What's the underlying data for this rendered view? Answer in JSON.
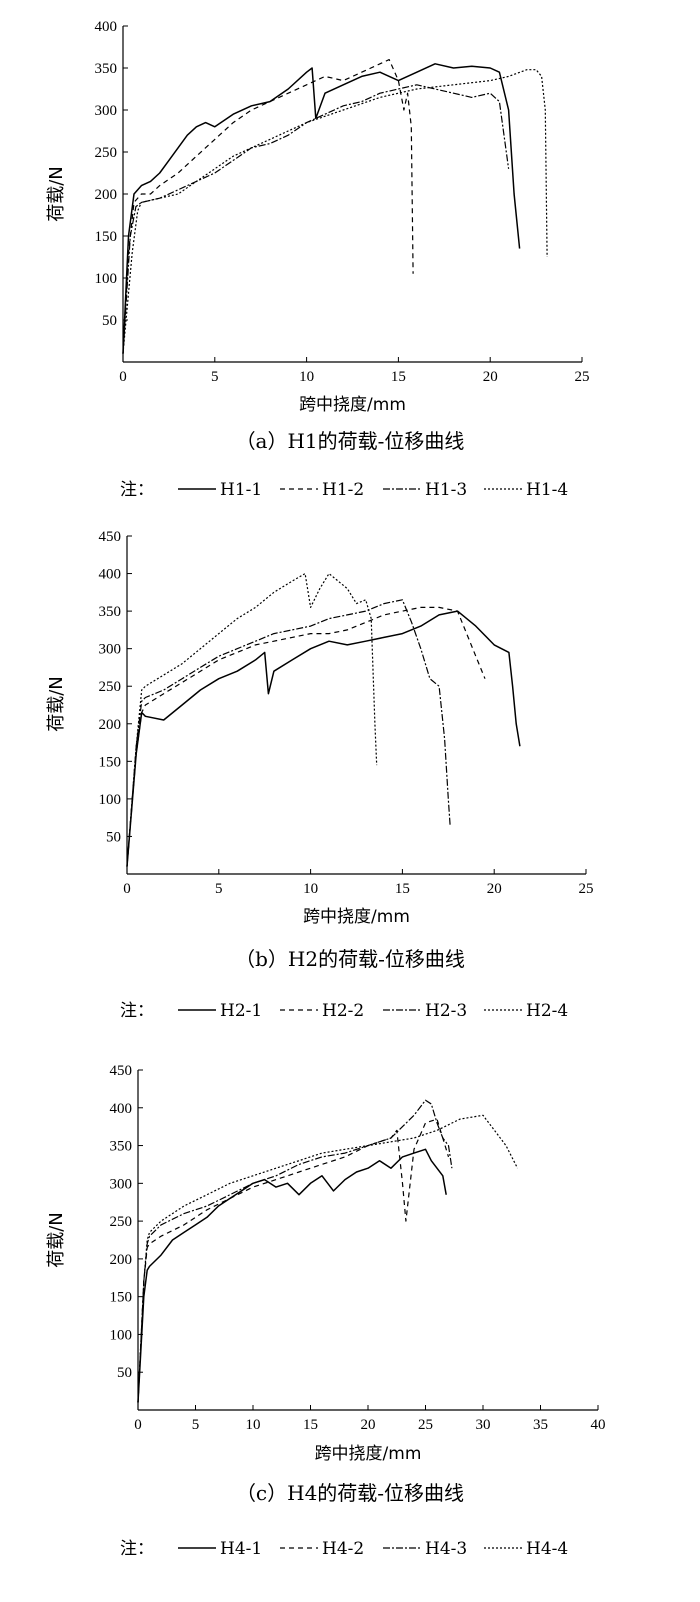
{
  "chart_data": [
    {
      "type": "line",
      "caption": "（a）H1的荷载-位移曲线",
      "xlabel": "跨中挠度/mm",
      "ylabel": "荷载/N",
      "xlim": [
        0,
        25
      ],
      "ylim": [
        0,
        400
      ],
      "xticks": [
        0,
        5,
        10,
        15,
        20,
        25
      ],
      "yticks": [
        50,
        100,
        150,
        200,
        250,
        300,
        350,
        400
      ],
      "legend_prefix": "注：",
      "series": [
        {
          "name": "H1-1",
          "dash": "solid",
          "x": [
            0,
            0.3,
            0.6,
            1.0,
            1.5,
            2.0,
            2.5,
            3.0,
            3.5,
            4.0,
            4.5,
            5.0,
            6.0,
            7.0,
            8.0,
            9.0,
            10.0,
            10.3,
            10.5,
            11.0,
            12.0,
            13.0,
            14.0,
            15.0,
            16.0,
            17.0,
            18.0,
            19.0,
            20.0,
            20.5,
            21.0,
            21.3,
            21.6
          ],
          "y": [
            10,
            150,
            200,
            210,
            215,
            225,
            240,
            255,
            270,
            280,
            285,
            280,
            295,
            305,
            310,
            325,
            345,
            350,
            290,
            320,
            330,
            340,
            345,
            335,
            345,
            355,
            350,
            352,
            350,
            345,
            300,
            200,
            135
          ]
        },
        {
          "name": "H1-2",
          "dash": "5,4",
          "x": [
            0,
            0.3,
            0.6,
            1.0,
            1.5,
            2.0,
            3.0,
            4.0,
            5.0,
            6.0,
            7.0,
            8.0,
            9.0,
            10.0,
            11.0,
            12.0,
            13.0,
            14.0,
            14.5,
            15.0,
            15.3,
            15.5,
            15.7,
            15.8
          ],
          "y": [
            10,
            130,
            190,
            200,
            200,
            210,
            225,
            245,
            265,
            285,
            300,
            310,
            320,
            330,
            340,
            335,
            345,
            355,
            360,
            335,
            300,
            320,
            280,
            105
          ]
        },
        {
          "name": "H1-3",
          "dash": "7,2,2,2",
          "x": [
            0,
            0.4,
            0.7,
            1.0,
            2.0,
            3.0,
            4.0,
            5.0,
            6.0,
            7.0,
            8.0,
            9.0,
            10.0,
            11.0,
            12.0,
            13.0,
            14.0,
            15.0,
            16.0,
            17.0,
            18.0,
            19.0,
            20.0,
            20.5,
            21.0
          ],
          "y": [
            10,
            150,
            185,
            190,
            195,
            205,
            215,
            225,
            240,
            255,
            260,
            270,
            285,
            295,
            305,
            310,
            320,
            325,
            330,
            325,
            320,
            315,
            320,
            310,
            230
          ]
        },
        {
          "name": "H1-4",
          "dash": "2,2",
          "x": [
            0,
            0.5,
            0.8,
            1.0,
            2.0,
            3.0,
            4.0,
            5.0,
            6.0,
            7.0,
            8.0,
            9.0,
            10.0,
            12.0,
            14.0,
            16.0,
            18.0,
            20.0,
            21.0,
            22.0,
            22.5,
            22.8,
            23.0,
            23.1
          ],
          "y": [
            10,
            130,
            180,
            190,
            195,
            200,
            215,
            230,
            245,
            255,
            265,
            275,
            285,
            300,
            315,
            325,
            330,
            335,
            340,
            348,
            348,
            340,
            300,
            125
          ]
        }
      ]
    },
    {
      "type": "line",
      "caption": "（b）H2的荷载-位移曲线",
      "xlabel": "跨中挠度/mm",
      "ylabel": "荷载/N",
      "xlim": [
        0,
        25
      ],
      "ylim": [
        0,
        450
      ],
      "xticks": [
        0,
        5,
        10,
        15,
        20,
        25
      ],
      "yticks": [
        50,
        100,
        150,
        200,
        250,
        300,
        350,
        400,
        450
      ],
      "legend_prefix": "注：",
      "series": [
        {
          "name": "H2-1",
          "dash": "solid",
          "x": [
            0,
            0.5,
            0.8,
            1.0,
            2.0,
            3.0,
            4.0,
            5.0,
            6.0,
            7.0,
            7.5,
            7.7,
            8.0,
            9.0,
            10.0,
            11.0,
            12.0,
            13.0,
            14.0,
            15.0,
            16.0,
            17.0,
            18.0,
            19.0,
            20.0,
            20.8,
            21.0,
            21.2,
            21.4
          ],
          "y": [
            10,
            160,
            215,
            210,
            205,
            225,
            245,
            260,
            270,
            285,
            295,
            240,
            270,
            285,
            300,
            310,
            305,
            310,
            315,
            320,
            330,
            345,
            350,
            330,
            305,
            295,
            250,
            200,
            170
          ]
        },
        {
          "name": "H2-2",
          "dash": "5,4",
          "x": [
            0,
            0.5,
            0.8,
            1.0,
            2.0,
            3.0,
            4.0,
            5.0,
            6.0,
            7.0,
            8.0,
            9.0,
            10.0,
            11.0,
            12.0,
            13.0,
            14.0,
            15.0,
            16.0,
            17.0,
            18.0,
            19.0,
            19.5
          ],
          "y": [
            10,
            160,
            215,
            225,
            240,
            255,
            270,
            285,
            295,
            305,
            310,
            315,
            320,
            320,
            325,
            335,
            345,
            350,
            355,
            355,
            350,
            290,
            260
          ]
        },
        {
          "name": "H2-3",
          "dash": "7,2,2,2",
          "x": [
            0,
            0.5,
            0.8,
            1.0,
            2.0,
            3.0,
            4.0,
            5.0,
            6.0,
            7.0,
            8.0,
            9.0,
            10.0,
            11.0,
            12.0,
            13.0,
            14.0,
            15.0,
            15.5,
            16.0,
            16.5,
            17.0,
            17.3,
            17.5,
            17.6
          ],
          "y": [
            10,
            170,
            230,
            235,
            245,
            260,
            275,
            290,
            300,
            310,
            320,
            325,
            330,
            340,
            345,
            350,
            360,
            365,
            335,
            300,
            260,
            250,
            180,
            100,
            65
          ]
        },
        {
          "name": "H2-4",
          "dash": "2,2",
          "x": [
            0,
            0.5,
            0.8,
            1.0,
            2.0,
            3.0,
            4.0,
            5.0,
            6.0,
            7.0,
            8.0,
            9.0,
            9.7,
            10.0,
            10.5,
            11.0,
            12.0,
            12.5,
            13.0,
            13.3,
            13.5,
            13.6
          ],
          "y": [
            10,
            170,
            245,
            250,
            265,
            280,
            300,
            320,
            340,
            355,
            375,
            390,
            400,
            355,
            380,
            400,
            380,
            360,
            365,
            340,
            200,
            145
          ]
        }
      ]
    },
    {
      "type": "line",
      "caption": "（c）H4的荷载-位移曲线",
      "xlabel": "跨中挠度/mm",
      "ylabel": "荷载/N",
      "xlim": [
        0,
        40
      ],
      "ylim": [
        0,
        450
      ],
      "xticks": [
        0,
        5,
        10,
        15,
        20,
        25,
        30,
        35,
        40
      ],
      "yticks": [
        50,
        100,
        150,
        200,
        250,
        300,
        350,
        400,
        450
      ],
      "legend_prefix": "注：",
      "series": [
        {
          "name": "H4-1",
          "dash": "solid",
          "x": [
            0,
            0.5,
            0.8,
            1.0,
            2.0,
            3.0,
            4.0,
            5.0,
            6.0,
            7.0,
            8.0,
            9.0,
            10.0,
            11.0,
            12.0,
            13.0,
            14.0,
            15.0,
            16.0,
            17.0,
            18.0,
            19.0,
            20.0,
            21.0,
            22.0,
            23.0,
            24.0,
            25.0,
            25.5,
            26.0,
            26.5,
            26.8
          ],
          "y": [
            10,
            150,
            185,
            190,
            205,
            225,
            235,
            245,
            255,
            270,
            280,
            290,
            300,
            305,
            295,
            300,
            285,
            300,
            310,
            290,
            305,
            315,
            320,
            330,
            320,
            335,
            340,
            345,
            330,
            320,
            310,
            285
          ]
        },
        {
          "name": "H4-2",
          "dash": "5,4",
          "x": [
            0,
            0.5,
            0.8,
            1.0,
            2.0,
            4.0,
            6.0,
            8.0,
            10.0,
            12.0,
            14.0,
            16.0,
            18.0,
            20.0,
            22.0,
            22.5,
            23.0,
            23.3,
            24.0,
            25.0,
            26.0,
            27.0
          ],
          "y": [
            10,
            170,
            215,
            220,
            230,
            245,
            265,
            280,
            295,
            305,
            315,
            325,
            335,
            350,
            360,
            370,
            300,
            250,
            345,
            380,
            385,
            335
          ]
        },
        {
          "name": "H4-3",
          "dash": "7,2,2,2",
          "x": [
            0,
            0.5,
            0.8,
            1.0,
            2.0,
            4.0,
            6.0,
            8.0,
            10.0,
            12.0,
            14.0,
            16.0,
            18.0,
            20.0,
            22.0,
            24.0,
            25.0,
            25.5,
            26.0,
            26.5,
            27.0,
            27.3
          ],
          "y": [
            10,
            170,
            220,
            230,
            245,
            260,
            270,
            285,
            300,
            310,
            325,
            335,
            340,
            350,
            360,
            390,
            410,
            405,
            380,
            360,
            350,
            320
          ]
        },
        {
          "name": "H4-4",
          "dash": "2,2",
          "x": [
            0,
            0.5,
            0.8,
            1.0,
            2.0,
            4.0,
            6.0,
            8.0,
            10.0,
            12.0,
            14.0,
            16.0,
            18.0,
            20.0,
            22.0,
            24.0,
            26.0,
            28.0,
            30.0,
            31.0,
            32.0,
            33.0
          ],
          "y": [
            10,
            170,
            225,
            235,
            250,
            270,
            285,
            300,
            310,
            320,
            330,
            340,
            345,
            350,
            355,
            360,
            370,
            385,
            390,
            370,
            350,
            320
          ]
        }
      ]
    }
  ]
}
